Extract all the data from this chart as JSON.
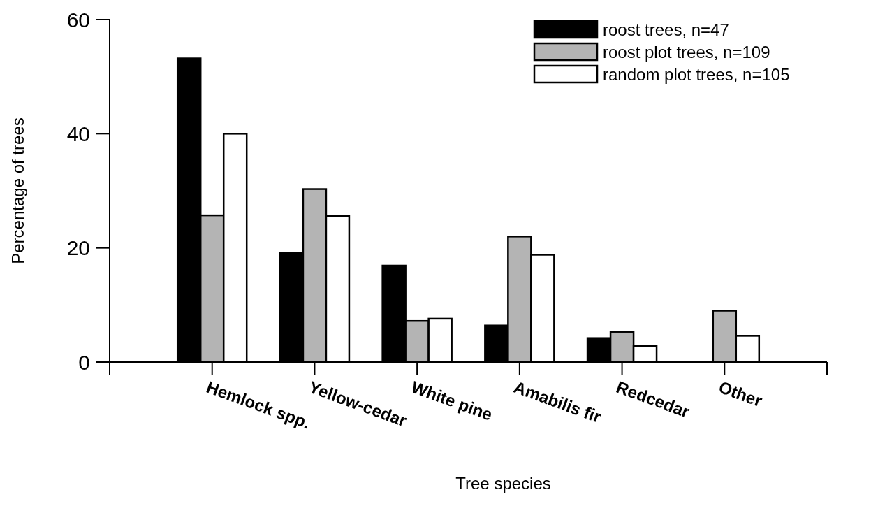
{
  "chart_data": {
    "type": "bar",
    "xlabel": "Tree species",
    "ylabel": "Percentage of trees",
    "categories": [
      "Hemlock spp.",
      "Yellow-cedar",
      "White pine",
      "Amabilis fir",
      "Redcedar",
      "Other"
    ],
    "series": [
      {
        "name": "roost trees, n=47",
        "color": "#000000",
        "values": [
          53.2,
          19.1,
          16.9,
          6.4,
          4.2,
          0
        ]
      },
      {
        "name": "roost plot trees, n=109",
        "color": "#b4b4b4",
        "values": [
          25.7,
          30.3,
          7.2,
          22.0,
          5.3,
          9.0
        ]
      },
      {
        "name": "random plot trees, n=105",
        "color": "#ffffff",
        "values": [
          40.0,
          25.6,
          7.6,
          18.8,
          2.8,
          4.6
        ]
      }
    ],
    "ylim": [
      0,
      60
    ],
    "yticks": [
      0,
      20,
      40,
      60
    ],
    "grid": false,
    "legend": "top right"
  }
}
